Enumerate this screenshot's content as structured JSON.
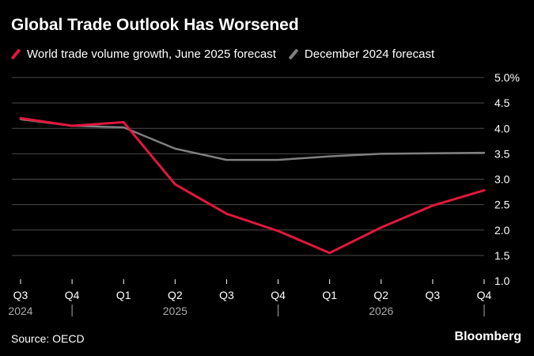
{
  "title": "Global Trade Outlook Has Worsened",
  "source": "Source: OECD",
  "brand": "Bloomberg",
  "colors": {
    "background": "#000000",
    "june_2025_series": "#e0183c",
    "dec_2024_series": "#808080",
    "gridline": "#4a4a4a"
  },
  "chart_data": {
    "type": "line",
    "title": "Global Trade Outlook Has Worsened",
    "xlabel": "",
    "ylabel": "",
    "categories": [
      "Q3",
      "Q4",
      "Q1",
      "Q2",
      "Q3",
      "Q4",
      "Q1",
      "Q2",
      "Q3",
      "Q4"
    ],
    "year_labels": [
      {
        "label": "2024",
        "index": 0
      },
      {
        "label": "2025",
        "index": 3
      },
      {
        "label": "2026",
        "index": 7
      }
    ],
    "year_separators_after_index": [
      1,
      5,
      9
    ],
    "y_ticks": [
      "1.0",
      "1.5",
      "2.0",
      "2.5",
      "3.0",
      "3.5",
      "4.0",
      "4.5",
      "5.0%"
    ],
    "ylim": [
      1.0,
      5.0
    ],
    "grid": true,
    "legend_position": "top-left",
    "series": [
      {
        "name": "World trade volume growth, June 2025 forecast",
        "color": "#e0183c",
        "values": [
          4.2,
          4.05,
          4.12,
          2.9,
          2.32,
          1.98,
          1.55,
          2.05,
          2.48,
          2.78
        ]
      },
      {
        "name": "December 2024 forecast",
        "color": "#808080",
        "values": [
          4.18,
          4.05,
          4.02,
          3.6,
          3.38,
          3.38,
          3.45,
          3.5,
          3.51,
          3.52
        ]
      }
    ]
  }
}
